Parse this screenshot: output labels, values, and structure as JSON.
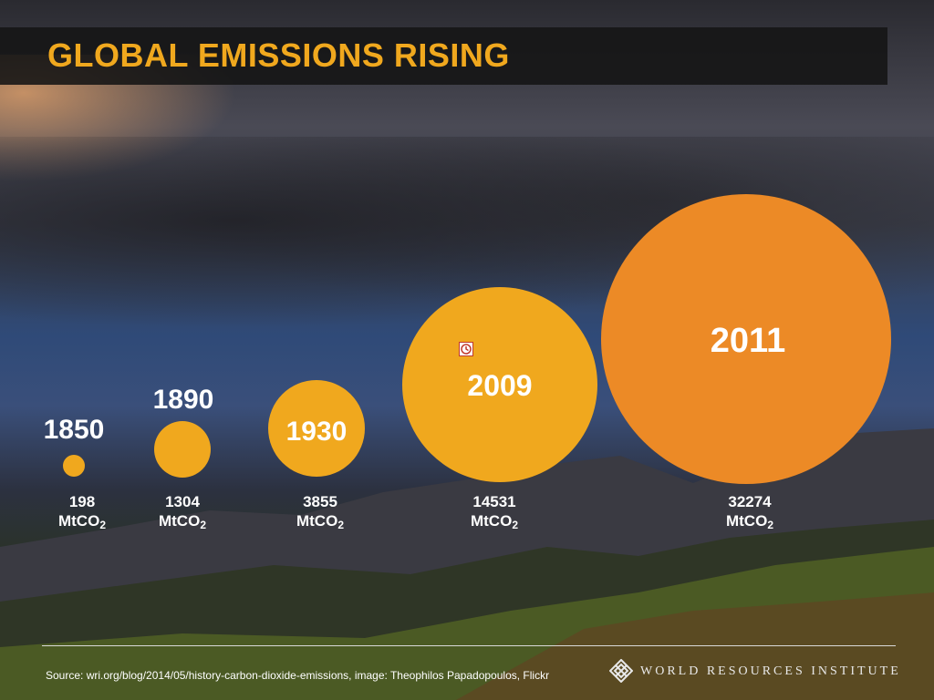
{
  "title": "GLOBAL EMISSIONS RISING",
  "chart_data": {
    "type": "bubble",
    "series": [
      {
        "year": "1850",
        "value": "198",
        "unit": "MtCO",
        "unit_sub": "2",
        "color": "#f0a81e"
      },
      {
        "year": "1890",
        "value": "1304",
        "unit": "MtCO",
        "unit_sub": "2",
        "color": "#f0a81e"
      },
      {
        "year": "1930",
        "value": "3855",
        "unit": "MtCO",
        "unit_sub": "2",
        "color": "#f0a81e"
      },
      {
        "year": "2009",
        "value": "14531",
        "unit": "MtCO",
        "unit_sub": "2",
        "color": "#f0a81e"
      },
      {
        "year": "2011",
        "value": "32274",
        "unit": "MtCO",
        "unit_sub": "2",
        "color": "#ec8a26"
      }
    ]
  },
  "footer": {
    "source": "Source: wri.org/blog/2014/05/history-carbon-dioxide-emissions, image: Theophilos Papadopoulos, Flickr",
    "logo_text": "WORLD RESOURCES INSTITUTE"
  }
}
